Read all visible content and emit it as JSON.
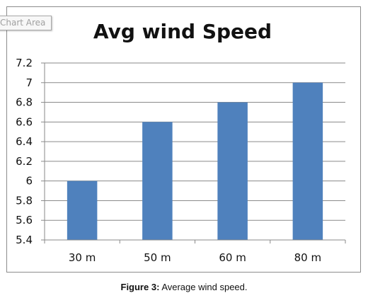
{
  "tooltip": {
    "label": "Chart Area"
  },
  "chart_data": {
    "type": "bar",
    "title": "Avg wind Speed",
    "categories": [
      "30 m",
      "50 m",
      "60 m",
      "80 m"
    ],
    "values": [
      6.0,
      6.6,
      6.8,
      7.0
    ],
    "ylim": [
      5.4,
      7.2
    ],
    "yticks": [
      "5.4",
      "5.6",
      "5.8",
      "6",
      "6.2",
      "6.4",
      "6.6",
      "6.8",
      "7",
      "7.2"
    ],
    "grid": true,
    "legend": "none",
    "bar_color": "#4f81bd"
  },
  "caption": {
    "figure_label": "Figure 3:",
    "text": "Average wind speed."
  }
}
